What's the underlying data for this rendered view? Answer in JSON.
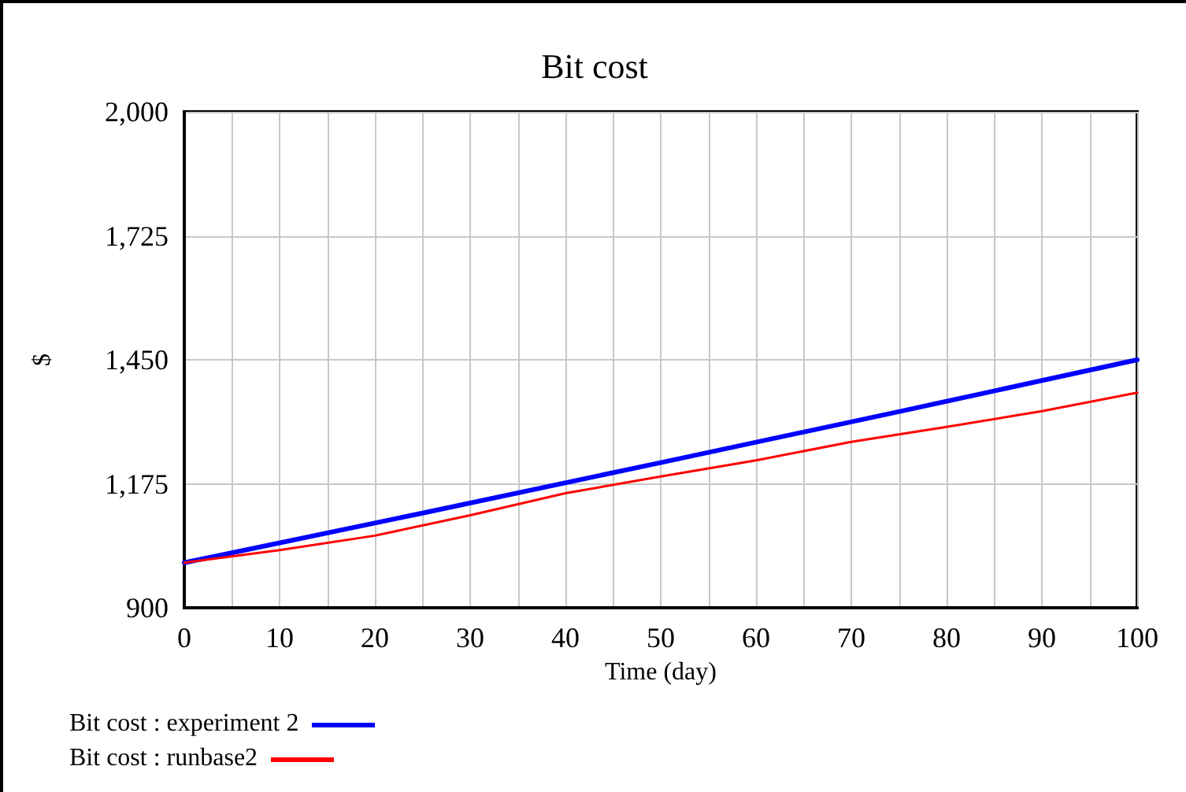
{
  "chart_data": {
    "type": "line",
    "title": "Bit cost",
    "xlabel": "Time (day)",
    "ylabel": "$",
    "x": [
      0,
      10,
      20,
      30,
      40,
      50,
      60,
      70,
      80,
      90,
      100
    ],
    "series": [
      {
        "name": "Bit cost : experiment 2",
        "color": "#0000ff",
        "x": [
          0,
          25,
          50,
          75,
          100
        ],
        "values": [
          1000,
          1110,
          1222,
          1335,
          1450
        ]
      },
      {
        "name": "Bit cost : runbase2",
        "color": "#ff0000",
        "values": [
          1000,
          1028,
          1060,
          1105,
          1154,
          1191,
          1227,
          1268,
          1301,
          1336,
          1377
        ]
      }
    ],
    "xlim": [
      0,
      100
    ],
    "xticks": [
      0,
      {
        "value": 5,
        "label": null
      },
      10,
      {
        "value": 15,
        "label": null
      },
      20,
      {
        "value": 25,
        "label": null
      },
      30,
      {
        "value": 35,
        "label": null
      },
      40,
      {
        "value": 45,
        "label": null
      },
      50,
      {
        "value": 55,
        "label": null
      },
      60,
      {
        "value": 65,
        "label": null
      },
      70,
      {
        "value": 75,
        "label": null
      },
      80,
      {
        "value": 85,
        "label": null
      },
      90,
      {
        "value": 95,
        "label": null
      },
      100
    ],
    "ylim": [
      900,
      2000
    ],
    "yticks": [
      {
        "value": 900,
        "label": "900"
      },
      {
        "value": 1175,
        "label": "1,175"
      },
      {
        "value": 1450,
        "label": "1,450"
      },
      {
        "value": 1725,
        "label": "1,725"
      },
      {
        "value": 2000,
        "label": "2,000"
      }
    ],
    "grid": true,
    "legend": "bottom",
    "marker": "none",
    "line_style": "solid"
  }
}
